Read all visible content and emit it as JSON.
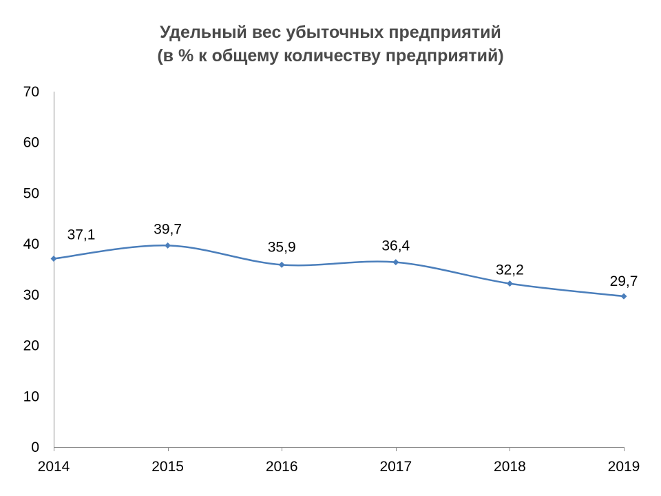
{
  "chart_data": {
    "type": "line",
    "title_lines": [
      "Удельный вес убыточных предприятий",
      "(в % к общему количеству предприятий)"
    ],
    "x": [
      "2014",
      "2015",
      "2016",
      "2017",
      "2018",
      "2019"
    ],
    "series": [
      {
        "values": [
          37.1,
          39.7,
          35.9,
          36.4,
          32.2,
          29.7
        ],
        "labels": [
          "37,1",
          "39,7",
          "35,9",
          "36,4",
          "32,2",
          "29,7"
        ],
        "color": "#4a7ebb",
        "marker": "diamond",
        "smooth": true
      }
    ],
    "ylim": [
      0,
      70
    ],
    "yticks": [
      "0",
      "10",
      "20",
      "30",
      "40",
      "50",
      "60",
      "70"
    ],
    "grid": false,
    "legend": "none"
  }
}
